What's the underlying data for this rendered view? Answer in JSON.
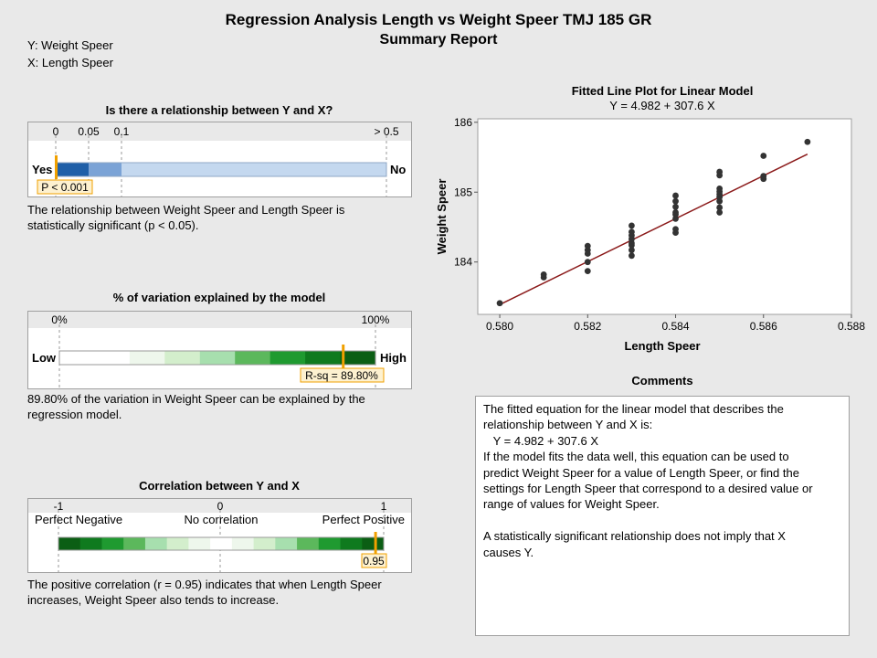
{
  "header": {
    "title": "Regression Analysis Length vs Weight Speer TMJ 185 GR",
    "subtitle": "Summary Report",
    "y_var": "Y: Weight Speer",
    "x_var": "X: Length Speer"
  },
  "relationship": {
    "title": "Is there a relationship between Y and X?",
    "ticks": [
      "0",
      "0.05",
      "0.1",
      "> 0.5"
    ],
    "left_label": "Yes",
    "right_label": "No",
    "p_value": 0.001,
    "marker_label": "P < 0.001",
    "description": "The relationship between Weight Speer and Length Speer is statistically significant (p < 0.05)."
  },
  "variation": {
    "title": "% of variation explained by the model",
    "ticks": [
      "0%",
      "100%"
    ],
    "left_label": "Low",
    "right_label": "High",
    "r_sq": 0.898,
    "marker_label": "R-sq = 89.80%",
    "description": "89.80% of the variation in Weight Speer can be explained by the regression model."
  },
  "correlation": {
    "title": "Correlation between Y and X",
    "ticks": [
      "-1",
      "0",
      "1"
    ],
    "labels": [
      "Perfect Negative",
      "No correlation",
      "Perfect Positive"
    ],
    "r": 0.95,
    "marker_label": "0.95",
    "description": "The positive correlation (r = 0.95) indicates that when Length Speer increases, Weight Speer also tends to increase."
  },
  "comments": {
    "title": "Comments",
    "lines": [
      "The fitted equation for the linear model that describes the",
      "relationship between Y and X is:",
      "   Y = 4.982 + 307.6 X",
      "If the model fits the data well, this equation can be used to",
      "predict Weight Speer for a value of Length Speer, or find the",
      "settings for Length Speer that correspond to a desired value or",
      "range of values for Weight Speer.",
      "",
      "A statistically significant relationship does not imply that X",
      "causes Y."
    ]
  },
  "colors": {
    "background": "#e9e9e9",
    "marker": "#f0a000",
    "fit_line": "#8b1a1a",
    "points": "#333333"
  },
  "chart_data": {
    "type": "scatter",
    "title": "Fitted Line Plot for Linear Model",
    "subtitle": "Y = 4.982 + 307.6 X",
    "xlabel": "Length Speer",
    "ylabel": "Weight Speer",
    "xlim": [
      0.5795,
      0.588
    ],
    "ylim": [
      183.25,
      186.05
    ],
    "xticks": [
      0.58,
      0.582,
      0.584,
      0.586,
      0.588
    ],
    "xtick_labels": [
      "0.580",
      "0.582",
      "0.584",
      "0.586",
      "0.588"
    ],
    "yticks": [
      184,
      185,
      186
    ],
    "ytick_labels": [
      "184",
      "185",
      "186"
    ],
    "fit": {
      "intercept": 4.982,
      "slope": 307.6,
      "x_range": [
        0.58,
        0.587
      ]
    },
    "grid": false,
    "series": [
      {
        "x": [
          0.58,
          0.581,
          0.581,
          0.582,
          0.582,
          0.582,
          0.582,
          0.582,
          0.583,
          0.583,
          0.583,
          0.583,
          0.583,
          0.583,
          0.583,
          0.583,
          0.584,
          0.584,
          0.584,
          0.584,
          0.584,
          0.584,
          0.584,
          0.584,
          0.585,
          0.585,
          0.585,
          0.585,
          0.585,
          0.585,
          0.585,
          0.585,
          0.585,
          0.586,
          0.586,
          0.586,
          0.587
        ],
        "y": [
          183.41,
          183.78,
          183.82,
          183.87,
          184.0,
          184.12,
          184.17,
          184.23,
          184.09,
          184.17,
          184.24,
          184.27,
          184.33,
          184.38,
          184.43,
          184.52,
          184.42,
          184.47,
          184.62,
          184.68,
          184.71,
          184.79,
          184.87,
          184.95,
          184.71,
          184.78,
          184.87,
          184.93,
          184.97,
          185.01,
          185.05,
          185.24,
          185.29,
          185.19,
          185.23,
          185.52,
          185.72
        ]
      }
    ]
  }
}
